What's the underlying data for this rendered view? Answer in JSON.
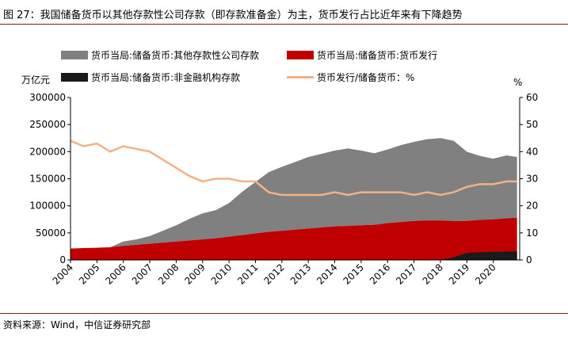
{
  "figure": {
    "title": "图 27：我国储备货币以其他存款性公司存款（即存款准备金）为主，货币发行占比近年来有下降趋势",
    "source": "资料来源：Wind，中信证券研究部",
    "left_unit": "万亿元",
    "right_unit": "%"
  },
  "chart_data": {
    "type": "area",
    "title": "图 27：我国储备货币以其他存款性公司存款（即存款准备金）为主，货币发行占比近年来有下降趋势",
    "x": [
      2004,
      2004.5,
      2005,
      2005.5,
      2006,
      2006.5,
      2007,
      2007.5,
      2008,
      2008.5,
      2009,
      2009.5,
      2010,
      2010.5,
      2011,
      2011.5,
      2012,
      2012.5,
      2013,
      2013.5,
      2014,
      2014.5,
      2015,
      2015.5,
      2016,
      2016.5,
      2017,
      2017.5,
      2018,
      2018.5,
      2019,
      2019.5,
      2020,
      2020.5,
      2020.9
    ],
    "xticks": [
      "2004",
      "2005",
      "2006",
      "2007",
      "2008",
      "2009",
      "2010",
      "2011",
      "2012",
      "2013",
      "2014",
      "2015",
      "2016",
      "2017",
      "2018",
      "2019",
      "2020"
    ],
    "y_left": {
      "label": "万亿元",
      "lim": [
        0,
        300000
      ],
      "ticks": [
        0,
        50000,
        100000,
        150000,
        200000,
        250000,
        300000
      ]
    },
    "y_right": {
      "label": "%",
      "lim": [
        0,
        60
      ],
      "ticks": [
        0,
        10,
        20,
        30,
        40,
        50,
        60
      ]
    },
    "series": [
      {
        "name": "货币当局:储备货币:其他存款性公司存款",
        "kind": "stacked-area",
        "color": "#808080",
        "values": [
          0,
          0,
          0,
          0,
          8000,
          10000,
          14000,
          22000,
          30000,
          40000,
          48000,
          52000,
          62000,
          80000,
          95000,
          110000,
          118000,
          125000,
          132000,
          136000,
          140000,
          143000,
          138000,
          132000,
          136000,
          142000,
          146000,
          150000,
          152000,
          148000,
          128000,
          118000,
          112000,
          116000,
          112000
        ]
      },
      {
        "name": "货币当局:储备货币:货币发行",
        "kind": "stacked-area",
        "color": "#c00000",
        "values": [
          21000,
          22000,
          22500,
          23500,
          26000,
          28000,
          30000,
          32000,
          34000,
          36000,
          38000,
          40000,
          43000,
          46000,
          49000,
          52000,
          54000,
          56000,
          58000,
          60000,
          62000,
          63000,
          64000,
          65000,
          68000,
          70000,
          72000,
          73000,
          73000,
          72000,
          72000,
          74000,
          75000,
          77000,
          78000
        ]
      },
      {
        "name": "货币当局:储备货币:非金融机构存款",
        "kind": "stacked-area",
        "color": "#1a1a1a",
        "values": [
          0,
          0,
          0,
          0,
          0,
          0,
          0,
          0,
          0,
          0,
          0,
          0,
          0,
          0,
          0,
          0,
          0,
          0,
          0,
          0,
          0,
          0,
          0,
          0,
          0,
          0,
          0,
          0,
          0,
          5000,
          13000,
          14000,
          15000,
          15500,
          16000
        ]
      },
      {
        "name": "货币发行/储备货币：%",
        "kind": "line",
        "axis": "right",
        "color": "#f4b183",
        "values": [
          44,
          42,
          43,
          40,
          42,
          41,
          40,
          37,
          34,
          31,
          29,
          30,
          30,
          29,
          29,
          25,
          24,
          24,
          24,
          24,
          25,
          24,
          25,
          25,
          25,
          25,
          24,
          25,
          24,
          25,
          27,
          28,
          28,
          29,
          29
        ]
      }
    ],
    "legend_position": "top",
    "grid": false
  }
}
